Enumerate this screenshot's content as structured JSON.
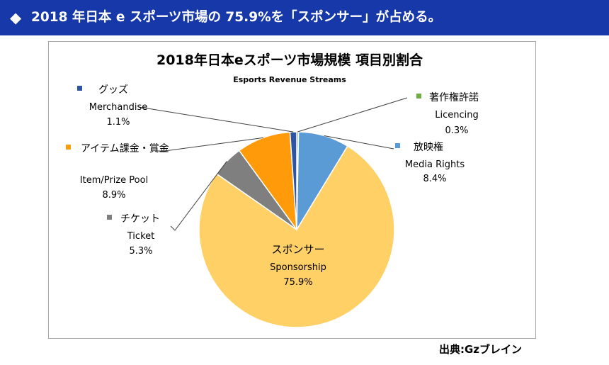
{
  "header": {
    "icon": "diamond-icon",
    "title": "2018 年日本 e スポーツ市場の 75.9%を「スポンサー」が占める。"
  },
  "source": "出典:Gzブレイン",
  "chart_data": {
    "type": "pie",
    "title": "2018年日本eスポーツ市場規模 項目別割合",
    "subtitle": "Esports Revenue Streams",
    "slices": [
      {
        "name_ja": "著作権許諾",
        "name_en": "Licencing",
        "value": 0.3,
        "label": "0.3%",
        "color": "#70ad47"
      },
      {
        "name_ja": "放映権",
        "name_en": "Media Rights",
        "value": 8.4,
        "label": "8.4%",
        "color": "#5b9bd5"
      },
      {
        "name_ja": "スポンサー",
        "name_en": "Sponsorship",
        "value": 75.9,
        "label": "75.9%",
        "color": "#ffd066"
      },
      {
        "name_ja": "チケット",
        "name_en": "Ticket",
        "value": 5.3,
        "label": "5.3%",
        "color": "#7f7f7f"
      },
      {
        "name_ja": "アイテム課金・賞金",
        "name_en": "Item/Prize Pool",
        "value": 8.9,
        "label": "8.9%",
        "color": "#ff9a0a"
      },
      {
        "name_ja": "グッズ",
        "name_en": "Merchandise",
        "value": 1.1,
        "label": "1.1%",
        "color": "#2e55a3"
      }
    ]
  }
}
